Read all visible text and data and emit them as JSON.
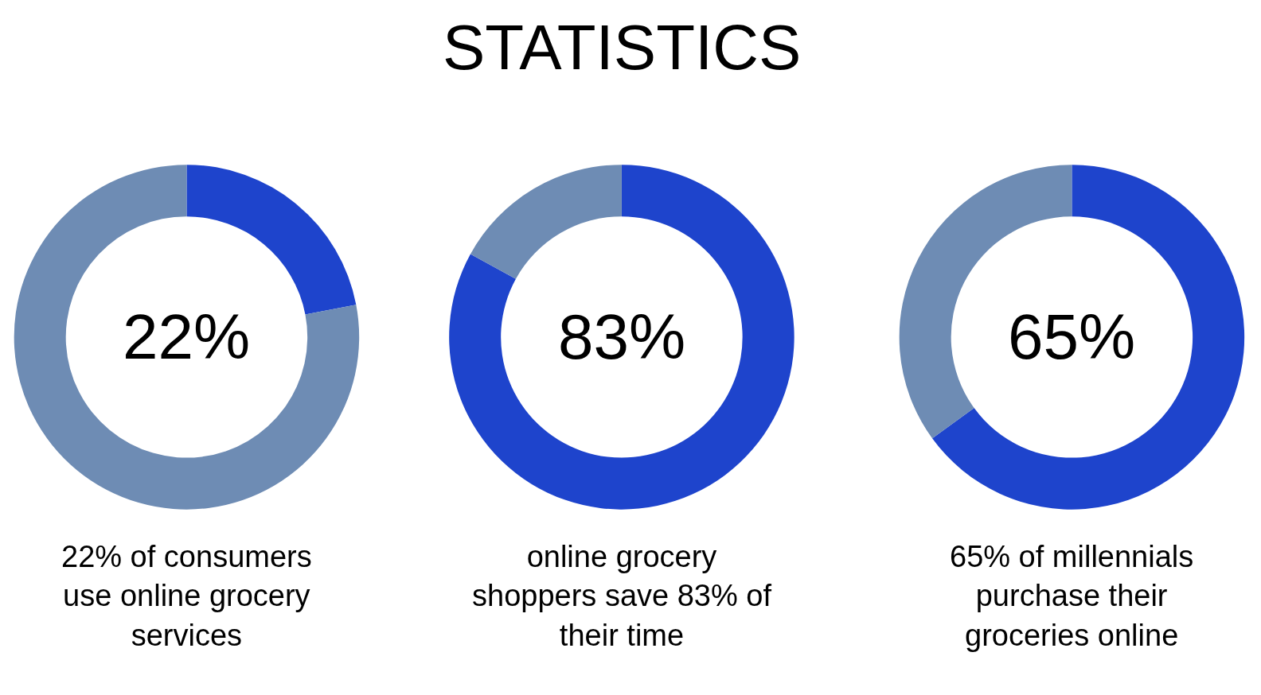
{
  "chart_data": [
    {
      "type": "donut",
      "categories": [
        null,
        null
      ],
      "values": [
        22,
        78
      ],
      "colors": [
        "#1e44cc",
        "#6e8cb4"
      ],
      "legend": false,
      "annotations": [
        "22%",
        "22% of consumers\nuse online grocery\nservices"
      ]
    },
    {
      "type": "donut",
      "title": "STATISTICS",
      "categories": [
        null,
        null
      ],
      "values": [
        83,
        17
      ],
      "colors": [
        "#1e44cc",
        "#6e8cb4"
      ],
      "legend": false,
      "annotations": [
        "83%",
        "online grocery\nshoppers save 83% of\ntheir time"
      ]
    },
    {
      "type": "donut",
      "categories": [
        null,
        null
      ],
      "values": [
        65,
        35
      ],
      "colors": [
        "#1e44cc",
        "#6e8cb4"
      ],
      "legend": false,
      "annotations": [
        "65%",
        "65% of millennials\npurchase their\ngroceries online"
      ]
    }
  ]
}
